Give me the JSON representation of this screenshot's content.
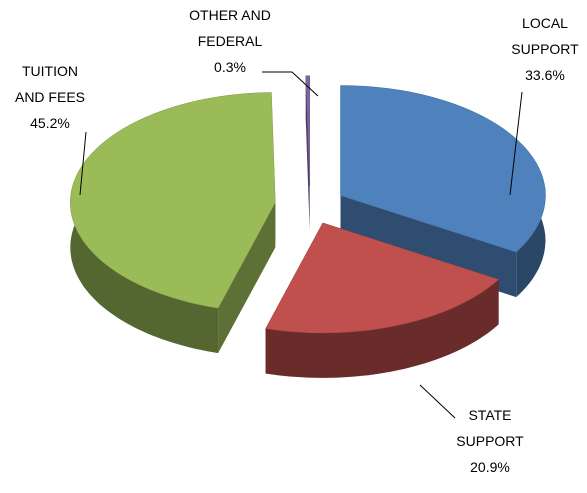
{
  "chart_data": {
    "type": "pie",
    "categories": [
      [
        "LOCAL",
        "SUPPORT"
      ],
      [
        "STATE",
        "SUPPORT"
      ],
      [
        "TUITION",
        "AND FEES"
      ],
      [
        "OTHER AND",
        "FEDERAL"
      ]
    ],
    "values": [
      33.6,
      20.9,
      45.2,
      0.3
    ],
    "value_labels": [
      "33.6%",
      "20.9%",
      "45.2%",
      "0.3%"
    ],
    "colors": [
      "#4f81bd",
      "#c0504d",
      "#9bbb59",
      "#8064a2"
    ]
  }
}
